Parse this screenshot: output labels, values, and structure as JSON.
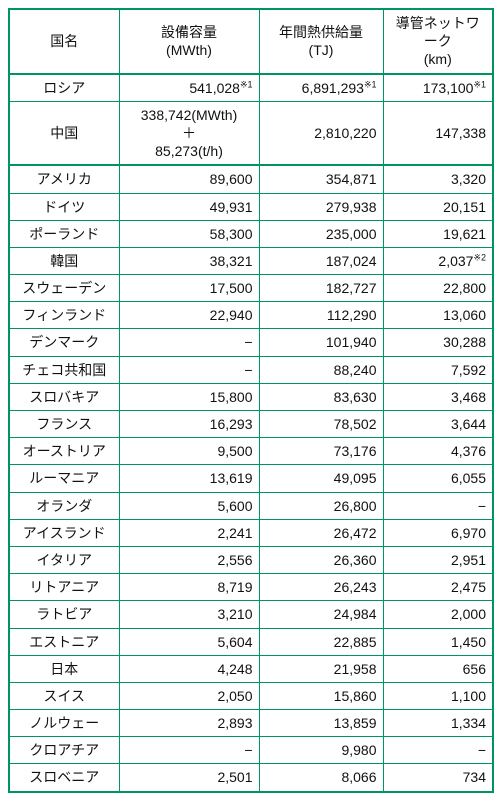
{
  "headers": {
    "country": "国名",
    "capacity_l1": "設備容量",
    "capacity_l2": "(MWth)",
    "supply_l1": "年間熱供給量",
    "supply_l2": "(TJ)",
    "network_l1": "導管ネットワーク",
    "network_l2": "(km)"
  },
  "note1": "※1",
  "note2": "※2",
  "rows": [
    {
      "country": "ロシア",
      "capacity": "541,028",
      "cap_note": "※1",
      "cap_stack": false,
      "supply": "6,891,293",
      "sup_note": "※1",
      "network": "173,100",
      "net_note": "※1",
      "sep": true
    },
    {
      "country": "中国",
      "cap_stack": true,
      "cap_line1": "338,742(MWth)",
      "cap_line2": "＋",
      "cap_line3": "85,273(t/h)",
      "supply": "2,810,220",
      "sup_note": "",
      "network": "147,338",
      "net_note": "",
      "sep": false
    },
    {
      "country": "アメリカ",
      "capacity": "89,600",
      "cap_note": "",
      "cap_stack": false,
      "supply": "354,871",
      "sup_note": "",
      "network": "3,320",
      "net_note": "",
      "sep": true
    },
    {
      "country": "ドイツ",
      "capacity": "49,931",
      "cap_note": "",
      "cap_stack": false,
      "supply": "279,938",
      "sup_note": "",
      "network": "20,151",
      "net_note": "",
      "sep": false
    },
    {
      "country": "ポーランド",
      "capacity": "58,300",
      "cap_note": "",
      "cap_stack": false,
      "supply": "235,000",
      "sup_note": "",
      "network": "19,621",
      "net_note": "",
      "sep": false
    },
    {
      "country": "韓国",
      "capacity": "38,321",
      "cap_note": "",
      "cap_stack": false,
      "supply": "187,024",
      "sup_note": "",
      "network": "2,037",
      "net_note": "※2",
      "sep": false
    },
    {
      "country": "スウェーデン",
      "capacity": "17,500",
      "cap_note": "",
      "cap_stack": false,
      "supply": "182,727",
      "sup_note": "",
      "network": "22,800",
      "net_note": "",
      "sep": false
    },
    {
      "country": "フィンランド",
      "capacity": "22,940",
      "cap_note": "",
      "cap_stack": false,
      "supply": "112,290",
      "sup_note": "",
      "network": "13,060",
      "net_note": "",
      "sep": false
    },
    {
      "country": "デンマーク",
      "capacity": "−",
      "cap_note": "",
      "cap_stack": false,
      "supply": "101,940",
      "sup_note": "",
      "network": "30,288",
      "net_note": "",
      "sep": false
    },
    {
      "country": "チェコ共和国",
      "capacity": "−",
      "cap_note": "",
      "cap_stack": false,
      "supply": "88,240",
      "sup_note": "",
      "network": "7,592",
      "net_note": "",
      "sep": false
    },
    {
      "country": "スロバキア",
      "capacity": "15,800",
      "cap_note": "",
      "cap_stack": false,
      "supply": "83,630",
      "sup_note": "",
      "network": "3,468",
      "net_note": "",
      "sep": false
    },
    {
      "country": "フランス",
      "capacity": "16,293",
      "cap_note": "",
      "cap_stack": false,
      "supply": "78,502",
      "sup_note": "",
      "network": "3,644",
      "net_note": "",
      "sep": false
    },
    {
      "country": "オーストリア",
      "capacity": "9,500",
      "cap_note": "",
      "cap_stack": false,
      "supply": "73,176",
      "sup_note": "",
      "network": "4,376",
      "net_note": "",
      "sep": false
    },
    {
      "country": "ルーマニア",
      "capacity": "13,619",
      "cap_note": "",
      "cap_stack": false,
      "supply": "49,095",
      "sup_note": "",
      "network": "6,055",
      "net_note": "",
      "sep": false
    },
    {
      "country": "オランダ",
      "capacity": "5,600",
      "cap_note": "",
      "cap_stack": false,
      "supply": "26,800",
      "sup_note": "",
      "network": "−",
      "net_note": "",
      "sep": false
    },
    {
      "country": "アイスランド",
      "capacity": "2,241",
      "cap_note": "",
      "cap_stack": false,
      "supply": "26,472",
      "sup_note": "",
      "network": "6,970",
      "net_note": "",
      "sep": false
    },
    {
      "country": "イタリア",
      "capacity": "2,556",
      "cap_note": "",
      "cap_stack": false,
      "supply": "26,360",
      "sup_note": "",
      "network": "2,951",
      "net_note": "",
      "sep": false
    },
    {
      "country": "リトアニア",
      "capacity": "8,719",
      "cap_note": "",
      "cap_stack": false,
      "supply": "26,243",
      "sup_note": "",
      "network": "2,475",
      "net_note": "",
      "sep": false
    },
    {
      "country": "ラトビア",
      "capacity": "3,210",
      "cap_note": "",
      "cap_stack": false,
      "supply": "24,984",
      "sup_note": "",
      "network": "2,000",
      "net_note": "",
      "sep": false
    },
    {
      "country": "エストニア",
      "capacity": "5,604",
      "cap_note": "",
      "cap_stack": false,
      "supply": "22,885",
      "sup_note": "",
      "network": "1,450",
      "net_note": "",
      "sep": false
    },
    {
      "country": "日本",
      "capacity": "4,248",
      "cap_note": "",
      "cap_stack": false,
      "supply": "21,958",
      "sup_note": "",
      "network": "656",
      "net_note": "",
      "sep": false
    },
    {
      "country": "スイス",
      "capacity": "2,050",
      "cap_note": "",
      "cap_stack": false,
      "supply": "15,860",
      "sup_note": "",
      "network": "1,100",
      "net_note": "",
      "sep": false
    },
    {
      "country": "ノルウェー",
      "capacity": "2,893",
      "cap_note": "",
      "cap_stack": false,
      "supply": "13,859",
      "sup_note": "",
      "network": "1,334",
      "net_note": "",
      "sep": false
    },
    {
      "country": "クロアチア",
      "capacity": "−",
      "cap_note": "",
      "cap_stack": false,
      "supply": "9,980",
      "sup_note": "",
      "network": "−",
      "net_note": "",
      "sep": false
    },
    {
      "country": "スロベニア",
      "capacity": "2,501",
      "cap_note": "",
      "cap_stack": false,
      "supply": "8,066",
      "sup_note": "",
      "network": "734",
      "net_note": "",
      "sep": false
    }
  ]
}
